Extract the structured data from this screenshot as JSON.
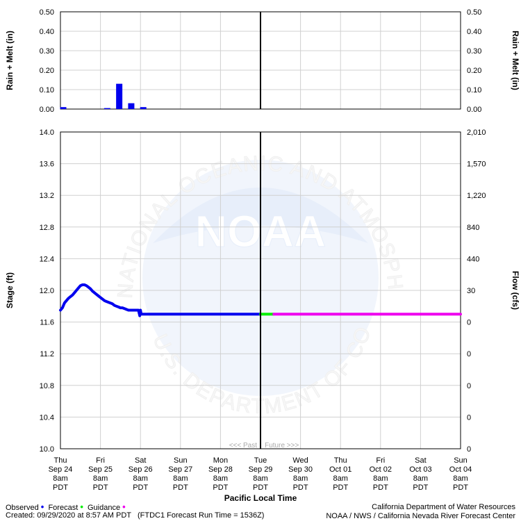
{
  "chart_data": [
    {
      "type": "bar",
      "ylabel": "Rain + Melt (in)",
      "ylim": [
        0,
        0.5
      ],
      "yticks": [
        "0.00",
        "0.10",
        "0.20",
        "0.30",
        "0.40",
        "0.50"
      ],
      "right_yticks": [
        "0.00",
        "0.10",
        "0.20",
        "0.30",
        "0.40",
        "0.50"
      ],
      "right_ylabel": "Rain + Melt (in)",
      "x_unit": "hours since Sep 24 8am PDT",
      "bars": [
        {
          "x": 0,
          "value": 0.01
        },
        {
          "x": 66,
          "value": 0.005
        },
        {
          "x": 84,
          "value": 0.13
        },
        {
          "x": 102,
          "value": 0.03
        },
        {
          "x": 120,
          "value": 0.01
        }
      ]
    },
    {
      "type": "line",
      "ylabel": "Stage (ft)",
      "right_ylabel": "Flow (cfs)",
      "xlabel": "Pacific Local Time",
      "ylim": [
        10.0,
        14.0
      ],
      "yticks": [
        "10.0",
        "10.4",
        "10.8",
        "11.2",
        "11.6",
        "12.0",
        "12.4",
        "12.8",
        "13.2",
        "13.6",
        "14.0"
      ],
      "right_yticks": [
        "0",
        "0",
        "0",
        "0",
        "0",
        "30",
        "440",
        "840",
        "1,220",
        "1,570",
        "2,010"
      ],
      "x_days": [
        {
          "day": "Thu",
          "date": "Sep 24",
          "time": "8am",
          "tz": "PDT"
        },
        {
          "day": "Fri",
          "date": "Sep 25",
          "time": "8am",
          "tz": "PDT"
        },
        {
          "day": "Sat",
          "date": "Sep 26",
          "time": "8am",
          "tz": "PDT"
        },
        {
          "day": "Sun",
          "date": "Sep 27",
          "time": "8am",
          "tz": "PDT"
        },
        {
          "day": "Mon",
          "date": "Sep 28",
          "time": "8am",
          "tz": "PDT"
        },
        {
          "day": "Tue",
          "date": "Sep 29",
          "time": "8am",
          "tz": "PDT"
        },
        {
          "day": "Wed",
          "date": "Sep 30",
          "time": "8am",
          "tz": "PDT"
        },
        {
          "day": "Thu",
          "date": "Oct 01",
          "time": "8am",
          "tz": "PDT"
        },
        {
          "day": "Fri",
          "date": "Oct 02",
          "time": "8am",
          "tz": "PDT"
        },
        {
          "day": "Sat",
          "date": "Oct 03",
          "time": "8am",
          "tz": "PDT"
        },
        {
          "day": "Sun",
          "date": "Oct 04",
          "time": "8am",
          "tz": "PDT"
        }
      ],
      "now_marker_hours": 120,
      "past_future_label": "<<< Past    Future >>>",
      "grid": true,
      "series": [
        {
          "name": "Observed",
          "color": "#0000ee",
          "x": [
            0,
            3,
            6,
            9,
            12,
            15,
            18,
            21,
            24,
            27,
            30,
            33,
            36,
            39,
            42,
            45,
            48,
            51,
            54,
            57,
            60,
            63,
            66,
            69,
            72,
            75,
            78,
            81,
            84,
            87,
            90,
            93,
            96,
            99,
            102,
            105,
            108,
            111,
            114,
            117,
            119,
            120,
            121,
            124,
            130,
            140,
            160,
            180,
            200,
            220,
            240,
            260,
            280,
            290,
            300
          ],
          "y": [
            11.75,
            11.78,
            11.84,
            11.87,
            11.9,
            11.92,
            11.94,
            11.97,
            12.0,
            12.03,
            12.06,
            12.07,
            12.07,
            12.06,
            12.04,
            12.02,
            11.99,
            11.97,
            11.95,
            11.93,
            11.91,
            11.89,
            11.87,
            11.86,
            11.85,
            11.84,
            11.83,
            11.81,
            11.8,
            11.79,
            11.78,
            11.78,
            11.77,
            11.76,
            11.75,
            11.75,
            11.75,
            11.75,
            11.75,
            11.75,
            11.68,
            11.75,
            11.7,
            11.7,
            11.7,
            11.7,
            11.7,
            11.7,
            11.7,
            11.7,
            11.7,
            11.7,
            11.7,
            11.7,
            11.7
          ]
        },
        {
          "name": "Forecast",
          "color": "#00ee00",
          "x": [
            300,
            310,
            320
          ],
          "y": [
            11.7,
            11.7,
            11.7
          ]
        },
        {
          "name": "Guidance",
          "color": "#ee00ee",
          "x": [
            320,
            360,
            400,
            440,
            480,
            520,
            560,
            600
          ],
          "y": [
            11.7,
            11.7,
            11.7,
            11.7,
            11.7,
            11.7,
            11.7,
            11.7
          ]
        }
      ]
    }
  ],
  "legend": {
    "observed": "Observed",
    "forecast": "Forecast",
    "guidance": "Guidance",
    "observed_color": "#0000ee",
    "forecast_color": "#00ee00",
    "guidance_color": "#ee00ee"
  },
  "footer": {
    "created": "Created: 09/29/2020 at 8:57 AM PDT",
    "run": "(FTDC1 Forecast Run Time = 1536Z)",
    "agency1": "California Department of Water Resources",
    "agency2": "NOAA / NWS / California Nevada River Forecast Center"
  },
  "watermark": {
    "logo_text": "NOAA",
    "ring_text_top": "NATIONAL OCEANIC AND ATMOSPHERIC ADMINISTRATION",
    "ring_text_bottom": "U.S. DEPARTMENT OF COMMERCE"
  }
}
